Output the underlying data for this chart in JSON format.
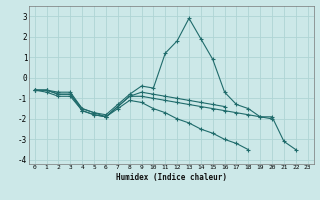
{
  "xlabel": "Humidex (Indice chaleur)",
  "background_color": "#cce8e8",
  "grid_color": "#afd4d4",
  "line_color": "#1f6b6b",
  "x_values": [
    0,
    1,
    2,
    3,
    4,
    5,
    6,
    7,
    8,
    9,
    10,
    11,
    12,
    13,
    14,
    15,
    16,
    17,
    18,
    19,
    20,
    21,
    22,
    23
  ],
  "series": [
    [
      -0.6,
      -0.6,
      -0.7,
      -0.7,
      -1.5,
      -1.7,
      -1.8,
      -1.3,
      -0.8,
      -0.4,
      -0.5,
      1.2,
      1.8,
      2.9,
      1.9,
      0.9,
      -0.7,
      -1.3,
      -1.5,
      -1.9,
      -1.9,
      -3.1,
      -3.5,
      null
    ],
    [
      -0.6,
      -0.6,
      -0.8,
      -0.8,
      -1.5,
      -1.7,
      -1.9,
      -1.4,
      -0.9,
      -0.7,
      -0.8,
      -0.9,
      -1.0,
      -1.1,
      -1.2,
      -1.3,
      -1.4,
      null,
      null,
      null,
      null,
      null,
      null,
      null
    ],
    [
      -0.6,
      -0.6,
      -0.8,
      -0.8,
      -1.6,
      -1.8,
      -1.9,
      -1.4,
      -0.9,
      -0.9,
      -1.0,
      -1.1,
      -1.2,
      -1.3,
      -1.4,
      -1.5,
      -1.6,
      -1.7,
      -1.8,
      -1.9,
      -2.0,
      null,
      null,
      null
    ],
    [
      -0.6,
      -0.7,
      -0.9,
      -0.9,
      -1.6,
      -1.8,
      -1.9,
      -1.5,
      -1.1,
      -1.2,
      -1.5,
      -1.7,
      -2.0,
      -2.2,
      -2.5,
      -2.7,
      -3.0,
      -3.2,
      -3.5,
      null,
      null,
      null,
      null,
      null
    ]
  ],
  "ylim": [
    -4.2,
    3.5
  ],
  "yticks": [
    -4,
    -3,
    -2,
    -1,
    0,
    1,
    2,
    3
  ],
  "xlim": [
    -0.5,
    23.5
  ],
  "ytick_labels": [
    "-4",
    "-3",
    "-2",
    "-1",
    "0",
    "1",
    "2",
    "3"
  ]
}
